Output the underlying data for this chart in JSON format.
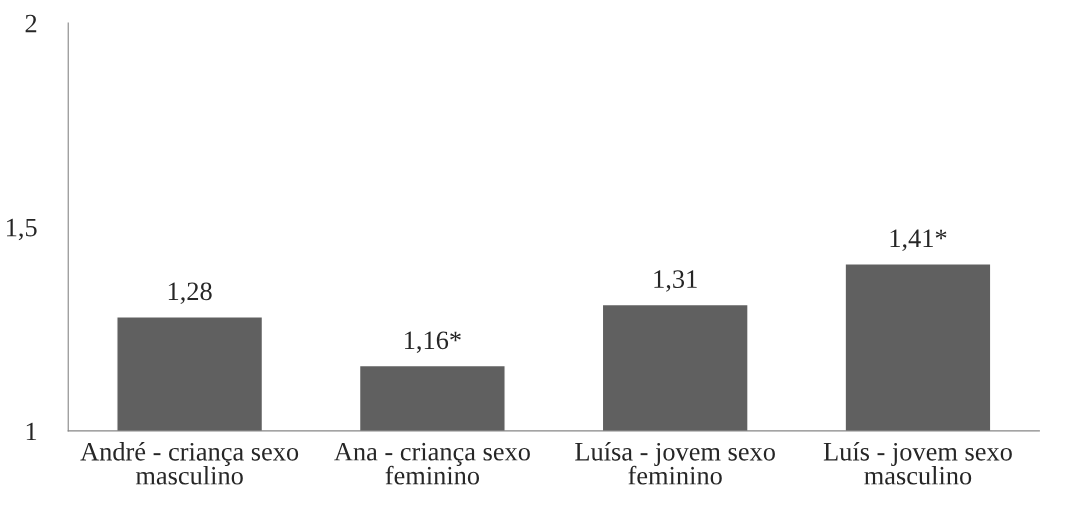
{
  "chart_data": {
    "type": "bar",
    "categories": [
      "André - criança sexo\nmasculino",
      "Ana - criança sexo\nfeminino",
      "Luísa - jovem sexo\nfeminino",
      "Luís - jovem sexo\nmasculino"
    ],
    "values": [
      1.28,
      1.16,
      1.31,
      1.41
    ],
    "value_labels": [
      "1,28",
      "1,16*",
      "1,31",
      "1,41*"
    ],
    "color": "#606060",
    "ylim": [
      1,
      2
    ],
    "yticks": [
      1,
      {
        "value": 1.5,
        "label": "1,5"
      },
      2
    ],
    "grid": false,
    "legend": false
  }
}
